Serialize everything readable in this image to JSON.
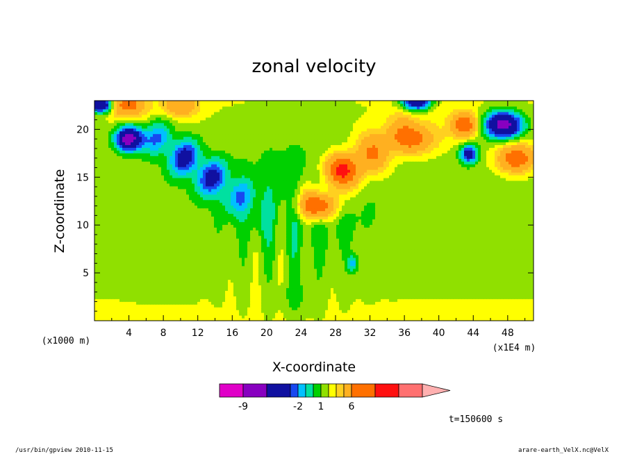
{
  "chart_data": {
    "type": "heatmap",
    "title": "zonal velocity",
    "xlabel": "X-coordinate",
    "ylabel": "Z-coordinate",
    "x_unit": "(x1E4 m)",
    "y_unit": "(x1000 m)",
    "xlim": [
      0,
      51
    ],
    "ylim": [
      0,
      23
    ],
    "x_ticks": [
      4,
      8,
      12,
      16,
      20,
      24,
      28,
      32,
      36,
      40,
      44,
      48
    ],
    "y_ticks": [
      5,
      10,
      15,
      20
    ],
    "colorbar": {
      "levels": [
        -12,
        -9,
        -6,
        -3,
        -2,
        -1,
        0,
        1,
        2,
        3,
        4,
        6,
        8,
        10,
        12
      ],
      "colors": [
        "#e000c8",
        "#8800c0",
        "#1010a0",
        "#1848f0",
        "#00c0ff",
        "#00e0a0",
        "#00d000",
        "#90e000",
        "#ffff00",
        "#ffd020",
        "#ffb020",
        "#ff7000",
        "#ff1010",
        "#ff7070",
        "#ffb0b0"
      ],
      "tick_labels": [
        "-9",
        "-2",
        "1",
        "6"
      ],
      "tick_values": [
        -9,
        -2,
        1,
        6
      ]
    },
    "time_label": "t=150600 s"
  },
  "footer": {
    "left": "/usr/bin/gpview   2010-11-15",
    "right": "arare-earth_VelX.nc@VelX"
  }
}
